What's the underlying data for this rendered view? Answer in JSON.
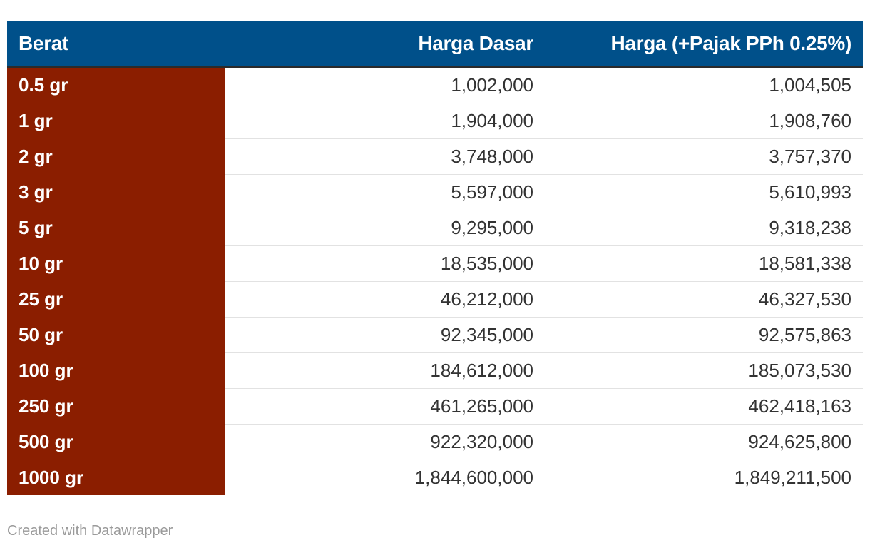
{
  "chart_data": {
    "type": "table",
    "columns": [
      "Berat",
      "Harga Dasar",
      "Harga (+Pajak PPh 0.25%)"
    ],
    "rows": [
      {
        "berat": "0.5 gr",
        "harga_dasar": "1,002,000",
        "harga_pajak": "1,004,505"
      },
      {
        "berat": "1 gr",
        "harga_dasar": "1,904,000",
        "harga_pajak": "1,908,760"
      },
      {
        "berat": "2 gr",
        "harga_dasar": "3,748,000",
        "harga_pajak": "3,757,370"
      },
      {
        "berat": "3 gr",
        "harga_dasar": "5,597,000",
        "harga_pajak": "5,610,993"
      },
      {
        "berat": "5 gr",
        "harga_dasar": "9,295,000",
        "harga_pajak": "9,318,238"
      },
      {
        "berat": "10 gr",
        "harga_dasar": "18,535,000",
        "harga_pajak": "18,581,338"
      },
      {
        "berat": "25 gr",
        "harga_dasar": "46,212,000",
        "harga_pajak": "46,327,530"
      },
      {
        "berat": "50 gr",
        "harga_dasar": "92,345,000",
        "harga_pajak": "92,575,863"
      },
      {
        "berat": "100 gr",
        "harga_dasar": "184,612,000",
        "harga_pajak": "185,073,530"
      },
      {
        "berat": "250 gr",
        "harga_dasar": "461,265,000",
        "harga_pajak": "462,418,163"
      },
      {
        "berat": "500 gr",
        "harga_dasar": "922,320,000",
        "harga_pajak": "924,625,800"
      },
      {
        "berat": "1000 gr",
        "harga_dasar": "1,844,600,000",
        "harga_pajak": "1,849,211,500"
      }
    ]
  },
  "colors": {
    "header_background": "#00508a",
    "weight_column_background": "#8b1e00"
  },
  "footer": {
    "credit": "Created with Datawrapper"
  }
}
